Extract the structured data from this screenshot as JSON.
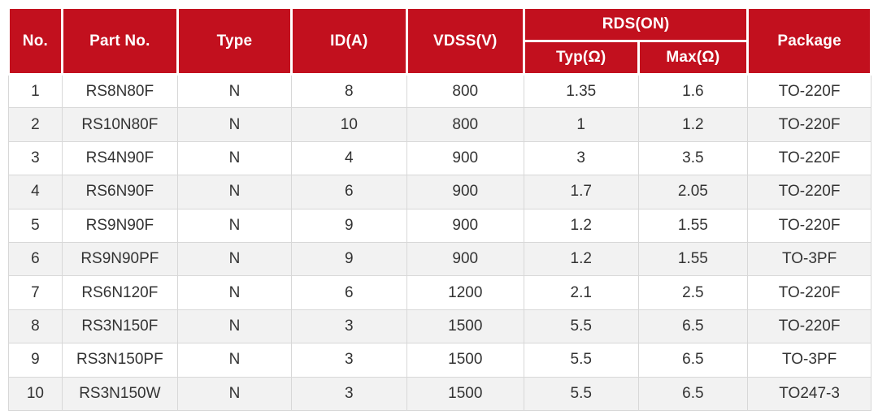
{
  "table": {
    "columns": [
      {
        "key": "no",
        "label": "No."
      },
      {
        "key": "part_no",
        "label": "Part No."
      },
      {
        "key": "type",
        "label": "Type"
      },
      {
        "key": "id_a",
        "label": "ID(A)"
      },
      {
        "key": "vdss_v",
        "label": "VDSS(V)"
      },
      {
        "key": "rds_on",
        "label": "RDS(ON)",
        "subcolumns": [
          {
            "key": "typ_ohm",
            "label": "Typ(Ω)"
          },
          {
            "key": "max_ohm",
            "label": "Max(Ω)"
          }
        ]
      },
      {
        "key": "package",
        "label": "Package"
      }
    ],
    "rows": [
      [
        "1",
        "RS8N80F",
        "N",
        "8",
        "800",
        "1.35",
        "1.6",
        "TO-220F"
      ],
      [
        "2",
        "RS10N80F",
        "N",
        "10",
        "800",
        "1",
        "1.2",
        "TO-220F"
      ],
      [
        "3",
        "RS4N90F",
        "N",
        "4",
        "900",
        "3",
        "3.5",
        "TO-220F"
      ],
      [
        "4",
        "RS6N90F",
        "N",
        "6",
        "900",
        "1.7",
        "2.05",
        "TO-220F"
      ],
      [
        "5",
        "RS9N90F",
        "N",
        "9",
        "900",
        "1.2",
        "1.55",
        "TO-220F"
      ],
      [
        "6",
        "RS9N90PF",
        "N",
        "9",
        "900",
        "1.2",
        "1.55",
        "TO-3PF"
      ],
      [
        "7",
        "RS6N120F",
        "N",
        "6",
        "1200",
        "2.1",
        "2.5",
        "TO-220F"
      ],
      [
        "8",
        "RS3N150F",
        "N",
        "3",
        "1500",
        "5.5",
        "6.5",
        "TO-220F"
      ],
      [
        "9",
        "RS3N150PF",
        "N",
        "3",
        "1500",
        "5.5",
        "6.5",
        "TO-3PF"
      ],
      [
        "10",
        "RS3N150W",
        "N",
        "3",
        "1500",
        "5.5",
        "6.5",
        "TO247-3"
      ]
    ]
  },
  "colors": {
    "header_bg": "#C2101E",
    "header_text": "#FFFFFF",
    "alt_row_bg": "#F2F2F2",
    "body_text": "#333333",
    "border": "#D8D8D8"
  }
}
